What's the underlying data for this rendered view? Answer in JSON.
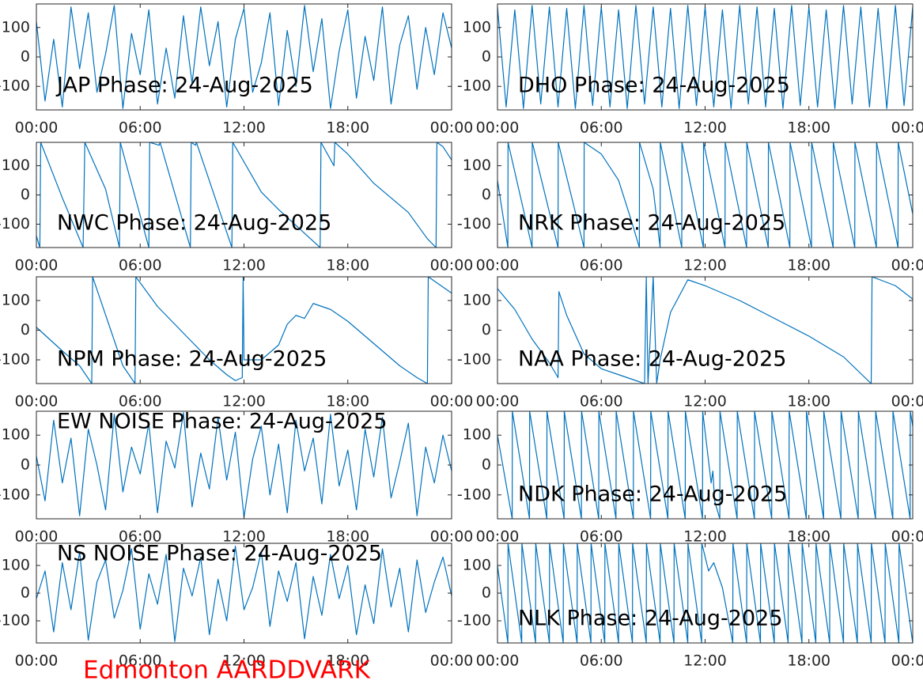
{
  "footer": "Edmonton AARDDVARK",
  "chart_data": [
    {
      "type": "line",
      "title": "JAP Phase: 24-Aug-2025",
      "title_location": "lower left",
      "color": "#0072bd",
      "xlim": [
        0,
        24
      ],
      "ylim": [
        -180,
        180
      ],
      "yticks": [
        -100,
        0,
        100
      ],
      "xticks": [
        {
          "value": 0,
          "label": "00:00"
        },
        {
          "value": 6,
          "label": "06:00"
        },
        {
          "value": 12,
          "label": "12:00"
        },
        {
          "value": 18,
          "label": "18:00"
        },
        {
          "value": 24,
          "label": "00:00"
        }
      ],
      "x": [
        0,
        0.5,
        1,
        1.5,
        2,
        2.5,
        3,
        3.5,
        4,
        4.5,
        5,
        5.5,
        6,
        6.5,
        7,
        7.5,
        8,
        8.5,
        9,
        9.5,
        10,
        10.5,
        11,
        11.5,
        12,
        12.5,
        13,
        13.5,
        14,
        14.5,
        15,
        15.5,
        16,
        16.5,
        17,
        17.5,
        18,
        18.5,
        19,
        19.5,
        20,
        20.5,
        21,
        21.5,
        22,
        22.5,
        23,
        23.5,
        24
      ],
      "values": [
        120,
        -150,
        60,
        -170,
        170,
        -40,
        150,
        -120,
        10,
        175,
        -175,
        80,
        -60,
        160,
        -160,
        30,
        -140,
        140,
        -90,
        170,
        -30,
        120,
        -170,
        60,
        165,
        -120,
        -20,
        150,
        -165,
        90,
        -100,
        175,
        -50,
        130,
        -175,
        20,
        160,
        -140,
        70,
        -80,
        170,
        -160,
        40,
        140,
        -110,
        100,
        -60,
        150,
        30
      ]
    },
    {
      "type": "line",
      "title": "DHO Phase: 24-Aug-2025",
      "title_location": "lower left",
      "color": "#0072bd",
      "xlim": [
        0,
        24
      ],
      "ylim": [
        -180,
        180
      ],
      "yticks": [
        -100,
        0,
        100
      ],
      "xticks": [
        {
          "value": 0,
          "label": "00:00"
        },
        {
          "value": 6,
          "label": "06:00"
        },
        {
          "value": 12,
          "label": "12:00"
        },
        {
          "value": 18,
          "label": "18:00"
        },
        {
          "value": 24,
          "label": "00:00"
        }
      ],
      "x": [
        0,
        0.5,
        1,
        1.5,
        2,
        2.5,
        3,
        3.5,
        4,
        4.5,
        5,
        5.5,
        6,
        6.5,
        7,
        7.5,
        8,
        8.5,
        9,
        9.5,
        10,
        10.5,
        11,
        11.5,
        12,
        12.5,
        13,
        13.5,
        14,
        14.5,
        15,
        15.5,
        16,
        16.5,
        17,
        17.5,
        18,
        18.5,
        19,
        19.5,
        20,
        20.5,
        21,
        21.5,
        22,
        22.5,
        23,
        23.5,
        24
      ],
      "values": [
        170,
        -170,
        160,
        -175,
        175,
        -160,
        170,
        -170,
        165,
        -175,
        175,
        -165,
        170,
        -170,
        160,
        -175,
        175,
        -160,
        170,
        -170,
        165,
        -175,
        175,
        -165,
        170,
        -170,
        160,
        -175,
        175,
        -160,
        170,
        -170,
        165,
        -175,
        175,
        -165,
        170,
        -170,
        160,
        -175,
        175,
        -160,
        170,
        -170,
        165,
        -175,
        175,
        -165,
        170
      ]
    },
    {
      "type": "line",
      "title": "NWC Phase: 24-Aug-2025",
      "title_location": "lower left",
      "color": "#0072bd",
      "xlim": [
        0,
        24
      ],
      "ylim": [
        -180,
        180
      ],
      "yticks": [
        -100,
        0,
        100
      ],
      "xticks": [
        {
          "value": 0,
          "label": "00:00"
        },
        {
          "value": 6,
          "label": "06:00"
        },
        {
          "value": 12,
          "label": "12:00"
        },
        {
          "value": 18,
          "label": "18:00"
        },
        {
          "value": 24,
          "label": "00:00"
        }
      ],
      "x": [
        0,
        0.2,
        0.25,
        1.5,
        2.7,
        2.8,
        4.0,
        4.8,
        4.85,
        6.5,
        6.55,
        7.1,
        7.15,
        8.9,
        8.95,
        9.2,
        9.25,
        11.3,
        11.35,
        13.0,
        14.0,
        16.4,
        16.45,
        17.2,
        17.25,
        18.0,
        19.5,
        20.5,
        21.5,
        22.6,
        23.1,
        23.15,
        23.5,
        24
      ],
      "values": [
        -140,
        -180,
        180,
        -10,
        -180,
        180,
        20,
        -180,
        180,
        -180,
        180,
        170,
        180,
        -180,
        180,
        170,
        180,
        -180,
        180,
        10,
        -50,
        -180,
        180,
        100,
        180,
        140,
        40,
        -10,
        -60,
        -150,
        -180,
        180,
        165,
        120
      ]
    },
    {
      "type": "line",
      "title": "NRK Phase: 24-Aug-2025",
      "title_location": "lower left",
      "color": "#0072bd",
      "xlim": [
        0,
        24
      ],
      "ylim": [
        -180,
        180
      ],
      "yticks": [
        -100,
        0,
        100
      ],
      "xticks": [
        {
          "value": 0,
          "label": "00:00"
        },
        {
          "value": 6,
          "label": "06:00"
        },
        {
          "value": 12,
          "label": "12:00"
        },
        {
          "value": 18,
          "label": "18:00"
        },
        {
          "value": 24,
          "label": "00:00"
        }
      ],
      "x": [
        0,
        0.6,
        0.61,
        2.0,
        2.01,
        3.5,
        3.51,
        5.0,
        5.01,
        6.0,
        7.0,
        7.8,
        8.2,
        8.21,
        9.0,
        9.4,
        9.41,
        10.65,
        10.66,
        11.9,
        11.91,
        13.15,
        13.16,
        14.4,
        14.41,
        15.65,
        15.66,
        16.9,
        16.91,
        18.15,
        18.16,
        19.4,
        19.41,
        20.65,
        20.66,
        21.9,
        21.91,
        23.15,
        23.16,
        24
      ],
      "values": [
        50,
        -180,
        180,
        -180,
        180,
        -180,
        180,
        -180,
        180,
        140,
        50,
        -100,
        -180,
        180,
        20,
        -180,
        180,
        -180,
        180,
        -180,
        180,
        -180,
        180,
        -180,
        180,
        -180,
        180,
        -180,
        180,
        -180,
        180,
        -180,
        180,
        -180,
        180,
        -180,
        180,
        -180,
        180,
        -65
      ]
    },
    {
      "type": "line",
      "title": "NPM Phase: 24-Aug-2025",
      "title_location": "lower left",
      "color": "#0072bd",
      "xlim": [
        0,
        24
      ],
      "ylim": [
        -180,
        180
      ],
      "yticks": [
        -100,
        0,
        100
      ],
      "xticks": [
        {
          "value": 0,
          "label": "00:00"
        },
        {
          "value": 6,
          "label": "06:00"
        },
        {
          "value": 12,
          "label": "12:00"
        },
        {
          "value": 18,
          "label": "18:00"
        },
        {
          "value": 24,
          "label": "00:00"
        }
      ],
      "x": [
        0,
        1.5,
        2.5,
        3.2,
        3.25,
        5.0,
        5.7,
        5.75,
        7.0,
        8.0,
        9.0,
        10.0,
        11.0,
        11.5,
        11.9,
        11.95,
        12.0,
        13.0,
        14.0,
        14.5,
        15.0,
        15.5,
        16.0,
        17.0,
        18.0,
        19.0,
        20.0,
        21.0,
        22.0,
        22.6,
        22.65,
        24
      ],
      "values": [
        10,
        -70,
        -120,
        -180,
        180,
        -120,
        -180,
        180,
        80,
        20,
        -40,
        -100,
        -150,
        -170,
        -160,
        180,
        -100,
        -100,
        -50,
        20,
        50,
        40,
        90,
        70,
        30,
        -20,
        -70,
        -120,
        -160,
        -180,
        180,
        125
      ]
    },
    {
      "type": "line",
      "title": "NAA Phase: 24-Aug-2025",
      "title_location": "lower left",
      "color": "#0072bd",
      "xlim": [
        0,
        24
      ],
      "ylim": [
        -180,
        180
      ],
      "yticks": [
        -100,
        0,
        100
      ],
      "xticks": [
        {
          "value": 0,
          "label": "00:00"
        },
        {
          "value": 6,
          "label": "06:00"
        },
        {
          "value": 12,
          "label": "12:00"
        },
        {
          "value": 18,
          "label": "18:00"
        },
        {
          "value": 24,
          "label": "00:00"
        }
      ],
      "x": [
        0,
        1,
        2,
        3,
        3.5,
        3.55,
        4,
        5,
        6,
        7,
        8,
        8.5,
        8.6,
        8.7,
        9.0,
        9.2,
        9.4,
        10,
        11,
        12,
        14,
        16,
        18,
        20,
        21.6,
        21.65,
        23,
        24
      ],
      "values": [
        140,
        70,
        -30,
        -110,
        -160,
        130,
        50,
        -80,
        -130,
        -150,
        -170,
        -180,
        180,
        -180,
        180,
        -180,
        -100,
        60,
        170,
        150,
        100,
        40,
        -20,
        -90,
        -180,
        180,
        150,
        105
      ]
    },
    {
      "type": "line",
      "title": "EW NOISE Phase: 24-Aug-2025",
      "title_location": "upper left",
      "color": "#0072bd",
      "xlim": [
        0,
        24
      ],
      "ylim": [
        -180,
        180
      ],
      "yticks": [
        -100,
        0,
        100
      ],
      "xticks": [
        {
          "value": 0,
          "label": "00:00"
        },
        {
          "value": 6,
          "label": "06:00"
        },
        {
          "value": 12,
          "label": "12:00"
        },
        {
          "value": 18,
          "label": "18:00"
        },
        {
          "value": 24,
          "label": "00:00"
        }
      ],
      "x": [
        0,
        0.5,
        1,
        1.5,
        2,
        2.5,
        3,
        3.5,
        4,
        4.5,
        5,
        5.5,
        6,
        6.5,
        7,
        7.5,
        8,
        8.5,
        9,
        9.5,
        10,
        10.5,
        11,
        11.5,
        12,
        12.5,
        13,
        13.5,
        14,
        14.5,
        15,
        15.5,
        16,
        16.5,
        17,
        17.5,
        18,
        18.5,
        19,
        19.5,
        20,
        20.5,
        21,
        21.5,
        22,
        22.5,
        23,
        23.5,
        24
      ],
      "values": [
        30,
        -120,
        150,
        -60,
        90,
        -170,
        120,
        0,
        -150,
        170,
        -90,
        60,
        -30,
        140,
        -160,
        80,
        -10,
        175,
        -140,
        40,
        -80,
        160,
        -50,
        110,
        -175,
        20,
        130,
        -100,
        70,
        -160,
        150,
        -20,
        90,
        -130,
        170,
        -70,
        50,
        -150,
        120,
        -40,
        160,
        -110,
        10,
        140,
        -170,
        60,
        -60,
        100,
        -20
      ]
    },
    {
      "type": "line",
      "title": "NDK Phase: 24-Aug-2025",
      "title_location": "lower left",
      "color": "#0072bd",
      "xlim": [
        0,
        24
      ],
      "ylim": [
        -180,
        180
      ],
      "yticks": [
        -100,
        0,
        100
      ],
      "xticks": [
        {
          "value": 0,
          "label": "00:00"
        },
        {
          "value": 6,
          "label": "06:00"
        },
        {
          "value": 12,
          "label": "12:00"
        },
        {
          "value": 18,
          "label": "18:00"
        },
        {
          "value": 24,
          "label": "00:00"
        }
      ],
      "x": [
        0,
        0.85,
        0.86,
        1.85,
        1.86,
        2.85,
        2.86,
        3.85,
        3.86,
        4.85,
        4.86,
        5.85,
        5.86,
        6.85,
        6.86,
        7.85,
        7.86,
        8.85,
        8.86,
        9.85,
        9.86,
        10.85,
        10.86,
        11.85,
        11.86,
        12.35,
        12.45,
        12.55,
        12.85,
        12.86,
        13.85,
        13.86,
        14.85,
        14.86,
        15.85,
        15.86,
        16.85,
        16.86,
        17.85,
        17.86,
        18.85,
        18.86,
        19.85,
        19.86,
        20.85,
        20.86,
        21.85,
        21.86,
        22.85,
        22.86,
        23.85,
        23.86,
        24
      ],
      "values": [
        100,
        -180,
        180,
        -180,
        180,
        -180,
        180,
        -180,
        180,
        -180,
        180,
        -180,
        180,
        -180,
        180,
        -180,
        180,
        -180,
        180,
        -180,
        180,
        -180,
        180,
        -180,
        180,
        -60,
        -20,
        -120,
        -180,
        180,
        -180,
        180,
        -180,
        180,
        -180,
        180,
        -180,
        180,
        -180,
        180,
        -180,
        180,
        -180,
        180,
        -180,
        180,
        -180,
        180,
        -180,
        180,
        -180,
        180,
        130
      ]
    },
    {
      "type": "line",
      "title": "NS NOISE Phase: 24-Aug-2025",
      "title_location": "upper left",
      "color": "#0072bd",
      "xlim": [
        0,
        24
      ],
      "ylim": [
        -180,
        180
      ],
      "yticks": [
        -100,
        0,
        100
      ],
      "xticks": [
        {
          "value": 0,
          "label": "00:00"
        },
        {
          "value": 6,
          "label": "06:00"
        },
        {
          "value": 12,
          "label": "12:00"
        },
        {
          "value": 18,
          "label": "18:00"
        },
        {
          "value": 24,
          "label": "00:00"
        }
      ],
      "x": [
        0,
        0.5,
        1,
        1.5,
        2,
        2.5,
        3,
        3.5,
        4,
        4.5,
        5,
        5.5,
        6,
        6.5,
        7,
        7.5,
        8,
        8.5,
        9,
        9.5,
        10,
        10.5,
        11,
        11.5,
        12,
        12.5,
        13,
        13.5,
        14,
        14.5,
        15,
        15.5,
        16,
        16.5,
        17,
        17.5,
        18,
        18.5,
        19,
        19.5,
        20,
        20.5,
        21,
        21.5,
        22,
        22.5,
        23,
        23.5,
        24
      ],
      "values": [
        -20,
        80,
        -140,
        110,
        -60,
        150,
        -170,
        40,
        120,
        -90,
        10,
        160,
        -130,
        70,
        -40,
        140,
        -175,
        90,
        -10,
        130,
        -150,
        50,
        -100,
        170,
        -60,
        20,
        150,
        -120,
        80,
        -30,
        110,
        -165,
        60,
        -80,
        140,
        -20,
        100,
        -150,
        30,
        -110,
        160,
        -50,
        90,
        -140,
        120,
        -70,
        40,
        130,
        -10
      ]
    },
    {
      "type": "line",
      "title": "NLK Phase: 24-Aug-2025",
      "title_location": "lower left",
      "color": "#0072bd",
      "xlim": [
        0,
        24
      ],
      "ylim": [
        -180,
        180
      ],
      "yticks": [
        -100,
        0,
        100
      ],
      "xticks": [
        {
          "value": 0,
          "label": "00:00"
        },
        {
          "value": 6,
          "label": "06:00"
        },
        {
          "value": 12,
          "label": "12:00"
        },
        {
          "value": 18,
          "label": "18:00"
        },
        {
          "value": 24,
          "label": "00:00"
        }
      ],
      "x": [
        0,
        0.6,
        0.61,
        1.4,
        1.41,
        2.2,
        2.21,
        3.0,
        3.01,
        3.8,
        3.81,
        4.6,
        4.61,
        5.4,
        5.41,
        6.2,
        6.21,
        7.0,
        7.01,
        7.8,
        7.81,
        8.6,
        8.61,
        9.4,
        9.41,
        10.2,
        10.21,
        11.0,
        11.01,
        11.8,
        11.81,
        12.2,
        12.5,
        13.0,
        13.6,
        13.61,
        14.4,
        14.41,
        15.2,
        15.21,
        16.0,
        16.01,
        16.8,
        16.81,
        17.6,
        17.61,
        18.4,
        18.41,
        19.2,
        19.21,
        20.0,
        20.01,
        20.8,
        20.81,
        21.6,
        21.61,
        22.4,
        22.41,
        23.2,
        23.21,
        24
      ],
      "values": [
        100,
        -180,
        180,
        -180,
        180,
        -180,
        180,
        -180,
        180,
        -180,
        180,
        -180,
        180,
        -180,
        180,
        -180,
        180,
        -180,
        180,
        -180,
        180,
        -180,
        180,
        -180,
        180,
        -180,
        180,
        -180,
        180,
        -180,
        180,
        80,
        110,
        20,
        -180,
        180,
        -180,
        180,
        -180,
        180,
        -180,
        180,
        -180,
        180,
        -180,
        180,
        -180,
        180,
        -180,
        180,
        -180,
        180,
        -180,
        180,
        -180,
        180,
        -180,
        180,
        -180,
        180,
        -180
      ]
    }
  ]
}
